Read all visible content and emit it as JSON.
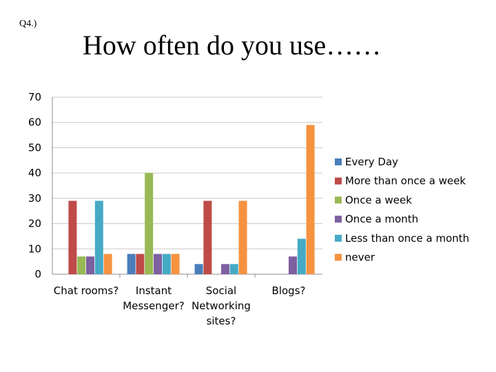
{
  "slide": {
    "label": "Q4.)",
    "title": "How often do you use……"
  },
  "chart_data": {
    "type": "bar",
    "title": "How often do you use……",
    "categories": [
      [
        "Chat rooms?"
      ],
      [
        "Instant",
        "Messenger?"
      ],
      [
        "Social",
        "Networking",
        "sites?"
      ],
      [
        "Blogs?"
      ]
    ],
    "series": [
      {
        "name": "Every Day",
        "color": "#4a7ebb",
        "values": [
          0,
          8,
          4,
          0
        ]
      },
      {
        "name": "More than once a week",
        "color": "#be4b48",
        "values": [
          29,
          8,
          29,
          0
        ]
      },
      {
        "name": "Once a week",
        "color": "#98b954",
        "values": [
          7,
          40,
          0,
          0
        ]
      },
      {
        "name": "Once a month",
        "color": "#7d60a0",
        "values": [
          7,
          8,
          4,
          7
        ]
      },
      {
        "name": "Less than once a month",
        "color": "#46aac5",
        "values": [
          29,
          8,
          4,
          14
        ]
      },
      {
        "name": "never",
        "color": "#f69240",
        "values": [
          8,
          8,
          29,
          59
        ]
      }
    ],
    "ylim": [
      0,
      70
    ],
    "yticks": [
      0,
      10,
      20,
      30,
      40,
      50,
      60,
      70
    ],
    "grid": true,
    "legend": "right"
  }
}
